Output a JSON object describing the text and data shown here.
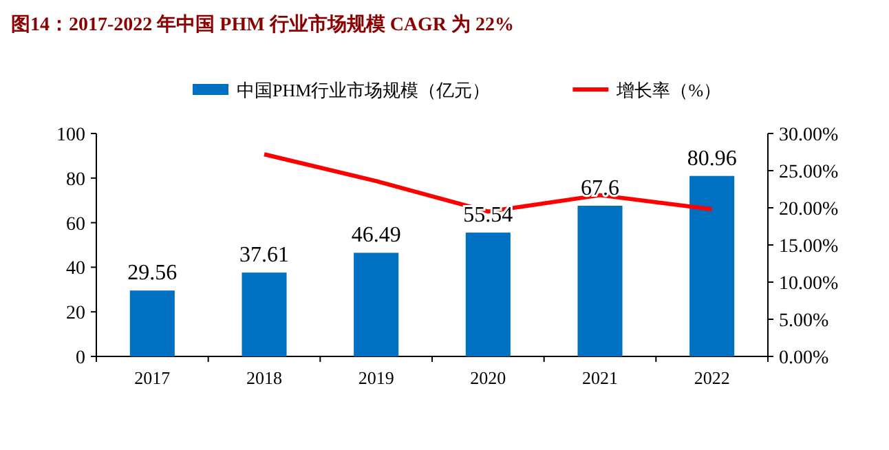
{
  "chart_data": {
    "type": "bar",
    "title": "图14：2017-2022 年中国 PHM 行业市场规模 CAGR 为 22%",
    "categories": [
      "2017",
      "2018",
      "2019",
      "2020",
      "2021",
      "2022"
    ],
    "series": [
      {
        "name": "中国PHM行业市场规模（亿元）",
        "color": "#0070c0",
        "values": [
          29.56,
          37.61,
          46.49,
          55.54,
          67.6,
          80.96
        ],
        "data_labels": true
      },
      {
        "name": "增长率（%）",
        "type": "line",
        "axis": "y2",
        "color": "#ff0000",
        "values": [
          null,
          27.2,
          23.6,
          19.5,
          21.7,
          19.8
        ]
      }
    ],
    "ylim": [
      0,
      100
    ],
    "yticks": [
      0,
      20,
      40,
      60,
      80,
      100
    ],
    "y2lim": [
      0,
      30
    ],
    "y2ticks": [
      {
        "value": 0,
        "label": "0.00%"
      },
      {
        "value": 5,
        "label": "5.00%"
      },
      {
        "value": 10,
        "label": "10.00%"
      },
      {
        "value": 15,
        "label": "15.00%"
      },
      {
        "value": 20,
        "label": "20.00%"
      },
      {
        "value": 25,
        "label": "25.00%"
      },
      {
        "value": 30,
        "label": "30.00%"
      }
    ],
    "grid": false,
    "legend": "top",
    "marker": "none",
    "line_style": "solid"
  }
}
